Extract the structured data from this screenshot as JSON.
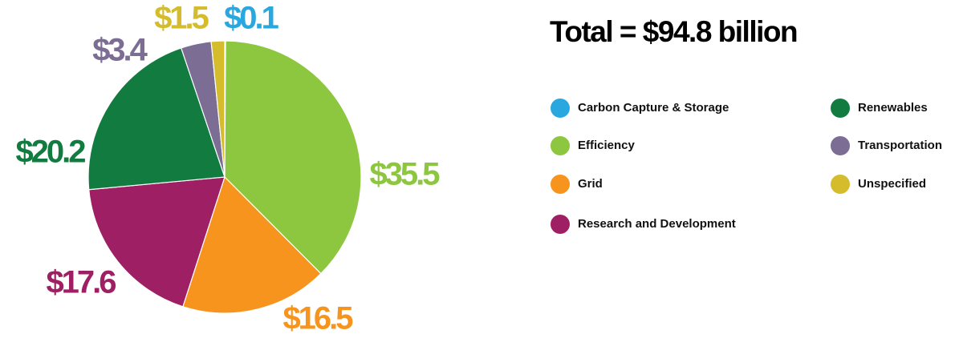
{
  "chart_data": {
    "type": "pie",
    "title": "Total = $94.8 billion",
    "categories": [
      "Carbon Capture & Storage",
      "Efficiency",
      "Grid",
      "Research and Development",
      "Renewables",
      "Transportation",
      "Unspecified"
    ],
    "values": [
      0.1,
      35.5,
      16.5,
      17.6,
      20.2,
      3.4,
      1.5
    ],
    "value_labels": [
      "$0.1",
      "$35.5",
      "$16.5",
      "$17.6",
      "$20.2",
      "$3.4",
      "$1.5"
    ],
    "colors": [
      "#29a8e0",
      "#8dc63f",
      "#f7941d",
      "#9e1f63",
      "#127b40",
      "#7b6d93",
      "#d4bc2c"
    ],
    "legend": "right"
  }
}
